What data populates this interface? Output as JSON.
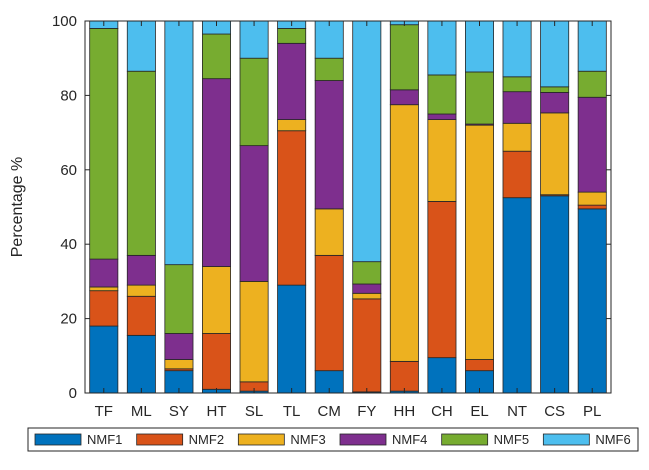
{
  "chart_data": {
    "type": "bar",
    "stacked": true,
    "title": "",
    "xlabel": "",
    "ylabel": "Percentage %",
    "ylim": [
      0,
      100
    ],
    "yticks": [
      0,
      20,
      40,
      60,
      80,
      100
    ],
    "grid": false,
    "legend": "bottom",
    "categories": [
      "TF",
      "ML",
      "SY",
      "HT",
      "SL",
      "TL",
      "CM",
      "FY",
      "HH",
      "CH",
      "EL",
      "NT",
      "CS",
      "PL"
    ],
    "series": [
      {
        "name": "NMF1",
        "color": "#0072BD",
        "values": [
          18.0,
          15.5,
          6.0,
          1.0,
          0.5,
          29.0,
          6.0,
          0.3,
          0.5,
          9.5,
          6.0,
          52.5,
          53.0,
          49.5
        ]
      },
      {
        "name": "NMF2",
        "color": "#D95319",
        "values": [
          9.5,
          10.5,
          0.5,
          15.0,
          2.5,
          41.5,
          31.0,
          25.0,
          8.0,
          42.0,
          3.0,
          12.5,
          0.3,
          1.0
        ]
      },
      {
        "name": "NMF3",
        "color": "#EDB120",
        "values": [
          1.0,
          3.0,
          2.5,
          18.0,
          27.0,
          3.0,
          12.5,
          1.5,
          69.0,
          22.0,
          63.0,
          7.5,
          22.0,
          3.5
        ]
      },
      {
        "name": "NMF4",
        "color": "#7E2F8E",
        "values": [
          7.5,
          8.0,
          7.0,
          50.5,
          36.5,
          20.5,
          34.5,
          2.5,
          4.0,
          1.5,
          0.3,
          8.5,
          5.5,
          25.5
        ]
      },
      {
        "name": "NMF5",
        "color": "#77AC30",
        "values": [
          62.0,
          49.5,
          18.5,
          12.0,
          23.5,
          4.0,
          6.0,
          6.0,
          17.5,
          10.5,
          14.0,
          4.0,
          1.5,
          7.0
        ]
      },
      {
        "name": "NMF6",
        "color": "#4DBEEE",
        "values": [
          2.0,
          13.5,
          65.5,
          3.5,
          10.0,
          2.0,
          10.0,
          64.7,
          1.0,
          14.5,
          13.7,
          15.0,
          17.7,
          13.5
        ]
      }
    ]
  }
}
